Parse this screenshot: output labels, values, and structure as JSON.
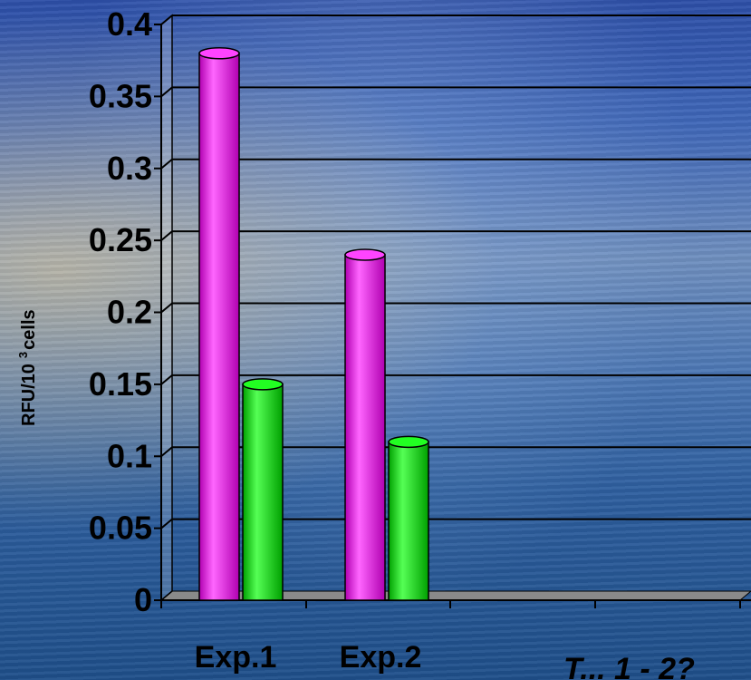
{
  "chart_data": {
    "type": "bar",
    "categories": [
      "Exp.1",
      "Exp.2"
    ],
    "series": [
      {
        "values": [
          0.38,
          0.24
        ]
      },
      {
        "values": [
          0.15,
          0.11
        ]
      }
    ],
    "colors": [
      "#ff00ff",
      "#00ee00"
    ],
    "ylim": [
      0,
      0.4
    ],
    "yticks": [
      "0",
      "0.05",
      "0.1",
      "0.15",
      "0.2",
      "0.25",
      "0.3",
      "0.35",
      "0.4"
    ],
    "ytick_values": [
      0,
      0.05,
      0.1,
      0.15,
      0.2,
      0.25,
      0.3,
      0.35,
      0.4
    ],
    "ylabel_base": "RFU/10",
    "ylabel_sup": "3",
    "ylabel_unit": "cells",
    "grid": true,
    "corner_text": "T... 1 - 2?"
  }
}
